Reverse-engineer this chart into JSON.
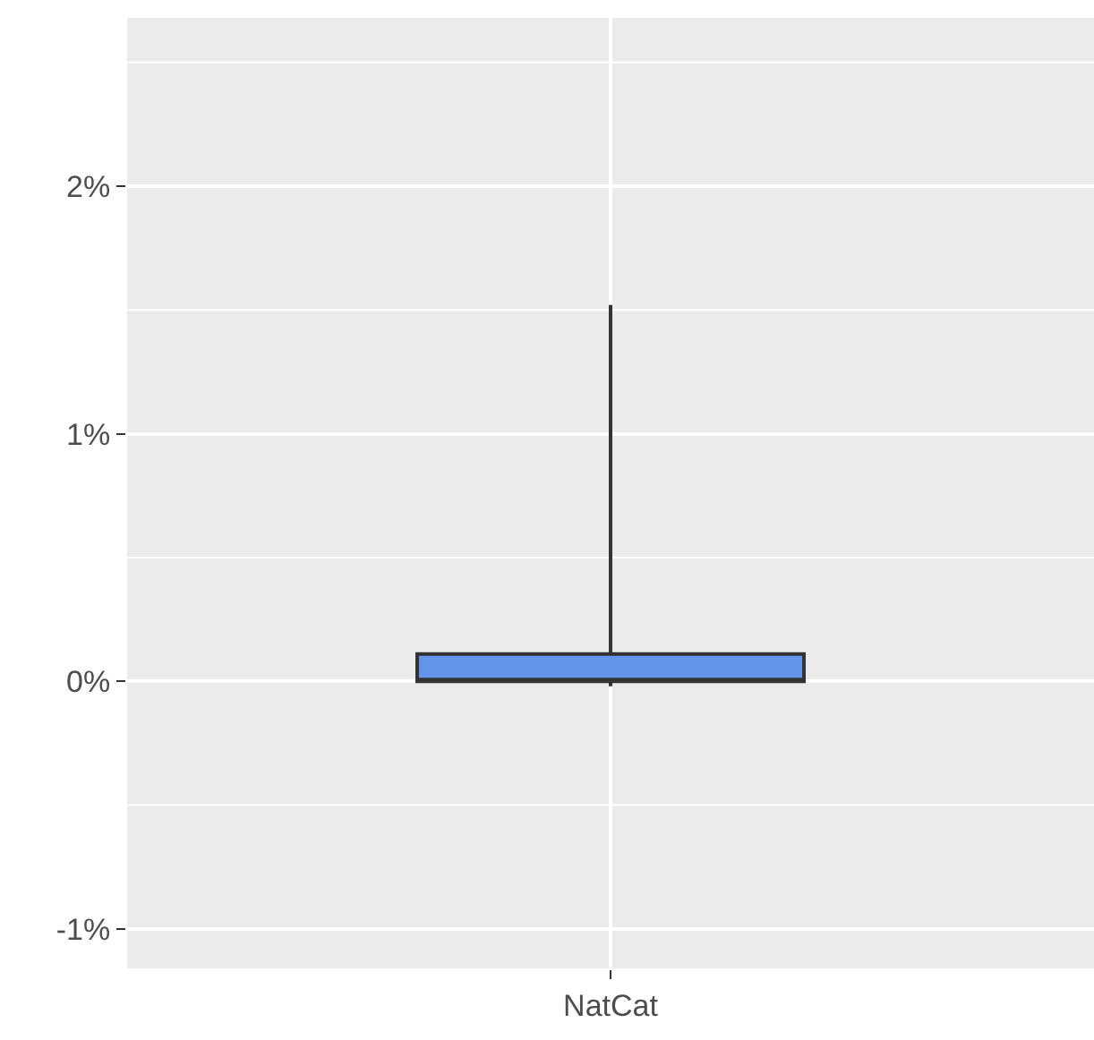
{
  "chart_data": {
    "type": "box",
    "categories": [
      "NatCat"
    ],
    "series": [
      {
        "color": "#6495ed",
        "boxes": [
          {
            "low": -0.02,
            "q1": 0,
            "median": 0,
            "q3": 0.11,
            "high": 1.52
          }
        ]
      }
    ],
    "ylim": [
      -1.16,
      2.68
    ],
    "yticks": [
      {
        "value": -1,
        "label": "-1%"
      },
      {
        "value": 0,
        "label": "0%"
      },
      {
        "value": 1,
        "label": "1%"
      },
      {
        "value": 2,
        "label": "2%"
      }
    ],
    "grid": true
  }
}
